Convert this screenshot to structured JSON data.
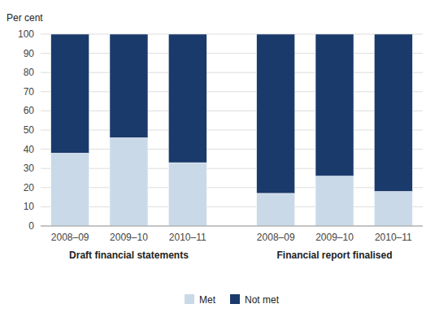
{
  "chart_data": {
    "type": "bar",
    "stacked": true,
    "ylabel": "Per cent",
    "categories": [
      "2008–09",
      "2009–10",
      "2010–11",
      "2008–09",
      "2009–10",
      "2010–11"
    ],
    "groups": [
      {
        "label": "Draft financial statements",
        "count": 3
      },
      {
        "label": "Financial report finalised",
        "count": 3
      }
    ],
    "series": [
      {
        "name": "Met",
        "color": "#c9d9e8",
        "values": [
          38,
          46,
          33,
          17,
          26,
          18
        ]
      },
      {
        "name": "Not met",
        "color": "#1a3a6b",
        "values": [
          62,
          54,
          67,
          83,
          74,
          82
        ]
      }
    ],
    "ylim": [
      0,
      100
    ],
    "yticks": [
      0,
      10,
      20,
      30,
      40,
      50,
      60,
      70,
      80,
      90,
      100
    ],
    "grid": true,
    "legend": "bottom"
  }
}
